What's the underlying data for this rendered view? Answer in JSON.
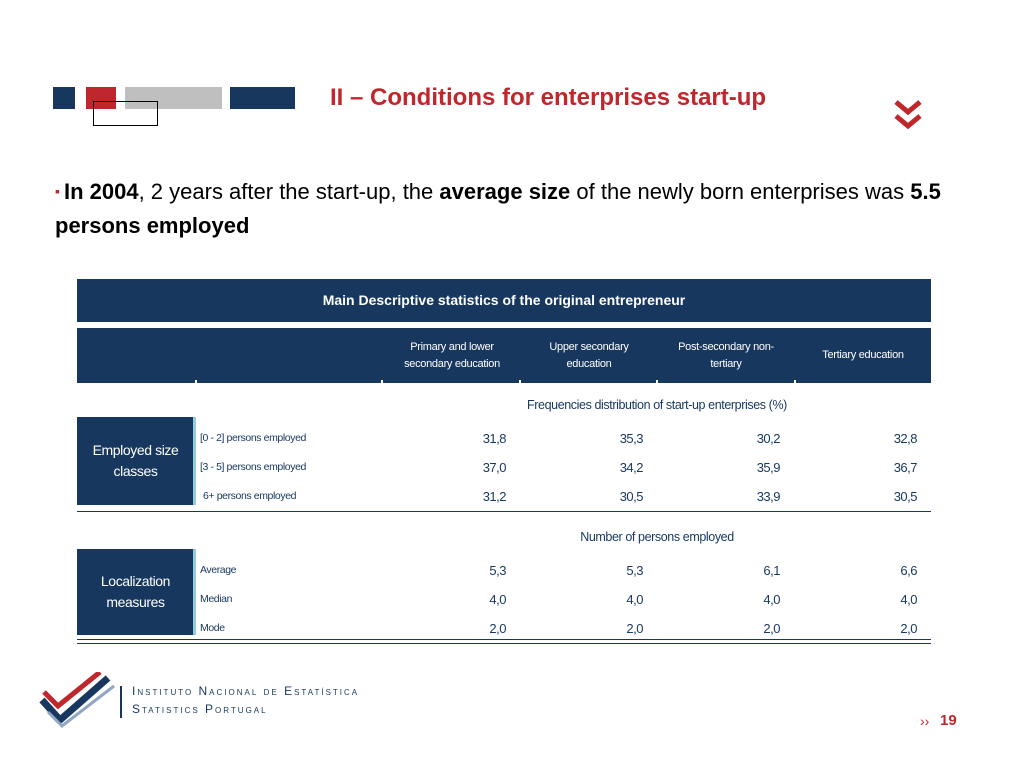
{
  "header": {
    "title": "II – Conditions for enterprises start-up",
    "colors": {
      "accent_red": "#c0272d",
      "navy": "#17375e",
      "grey": "#bfbfbf"
    },
    "nav_icon": "double-chevron-down-icon"
  },
  "bullet": {
    "marker": "▪",
    "part1_bold": "In 2004",
    "part2": ", 2 years after the start-up, the ",
    "part3_bold": "average size",
    "part4": " of the newly born enterprises was ",
    "part5_bold": "5.5 persons employed"
  },
  "table": {
    "title": "Main Descriptive statistics of the original entrepreneur",
    "columns": [
      {
        "line1": "Primary and lower",
        "line2": "secondary education"
      },
      {
        "line1": "Upper secondary",
        "line2": "education"
      },
      {
        "line1": "Post-secondary non-",
        "line2": "tertiary"
      },
      {
        "line1": "Tertiary education",
        "line2": ""
      }
    ],
    "section1": {
      "caption": "Frequencies distribution of start-up enterprises (%)",
      "group_line1": "Employed size",
      "group_line2": "classes",
      "rows": [
        {
          "label": "[0 - 2] persons employed",
          "values": [
            "31,8",
            "35,3",
            "30,2",
            "32,8"
          ]
        },
        {
          "label": "[3 - 5] persons employed",
          "values": [
            "37,0",
            "34,2",
            "35,9",
            "36,7"
          ]
        },
        {
          "label": "6+ persons employed",
          "values": [
            "31,2",
            "30,5",
            "33,9",
            "30,5"
          ]
        }
      ]
    },
    "section2": {
      "caption": "Number of persons employed",
      "group_line1": "Localization",
      "group_line2": "measures",
      "rows": [
        {
          "label": "Average",
          "values": [
            "5,3",
            "5,3",
            "6,1",
            "6,6"
          ]
        },
        {
          "label": "Median",
          "values": [
            "4,0",
            "4,0",
            "4,0",
            "4,0"
          ]
        },
        {
          "label": "Mode",
          "values": [
            "2,0",
            "2,0",
            "2,0",
            "2,0"
          ]
        }
      ]
    }
  },
  "footer": {
    "org_line1": "Instituto Nacional de Estatística",
    "org_line2": "Statistics Portugal",
    "logo_icon": "ine-checkmark-logo-icon",
    "page_arrow": "››",
    "page_number": "19"
  }
}
